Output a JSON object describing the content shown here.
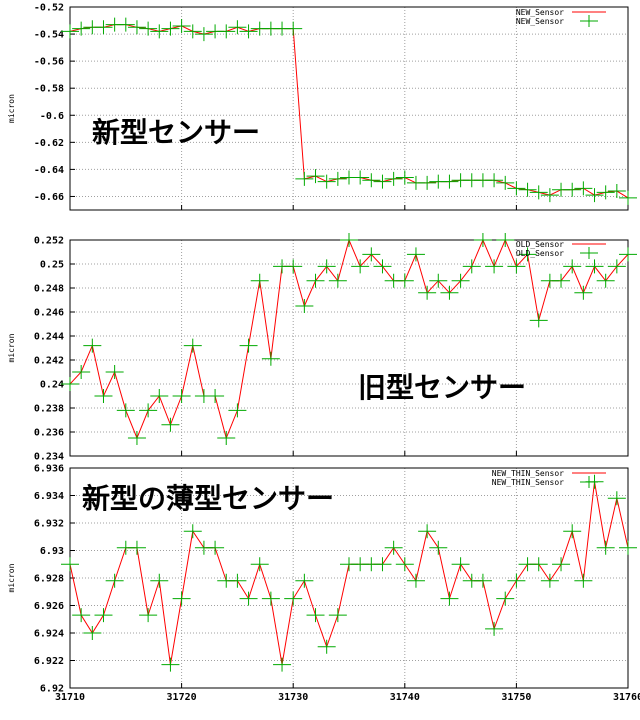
{
  "chart_data": [
    {
      "type": "line",
      "ylabel": "micron",
      "ylim": [
        -0.67,
        -0.52
      ],
      "yticks": [
        "-0.52",
        "-0.54",
        "-0.56",
        "-0.58",
        "-0.6",
        "-0.62",
        "-0.64",
        "-0.66"
      ],
      "xlim": [
        31710,
        31760
      ],
      "grid": true,
      "legend_position": "top-right",
      "overlay_text": "新型センサー",
      "series": [
        {
          "name": "NEW_Sensor",
          "line_color": "#ff0000",
          "marker_color": "#00aa00",
          "x": [
            31710,
            31711,
            31712,
            31713,
            31714,
            31715,
            31716,
            31717,
            31718,
            31719,
            31720,
            31721,
            31722,
            31723,
            31724,
            31725,
            31726,
            31727,
            31728,
            31729,
            31730,
            31731,
            31732,
            31733,
            31734,
            31735,
            31736,
            31737,
            31738,
            31739,
            31740,
            31741,
            31742,
            31743,
            31744,
            31745,
            31746,
            31747,
            31748,
            31749,
            31750,
            31751,
            31752,
            31753,
            31754,
            31755,
            31756,
            31757,
            31758,
            31759,
            31760
          ],
          "y": [
            -0.538,
            -0.536,
            -0.535,
            -0.535,
            -0.533,
            -0.533,
            -0.535,
            -0.536,
            -0.538,
            -0.536,
            -0.534,
            -0.538,
            -0.54,
            -0.538,
            -0.538,
            -0.535,
            -0.538,
            -0.536,
            -0.536,
            -0.536,
            -0.536,
            -0.647,
            -0.645,
            -0.649,
            -0.647,
            -0.646,
            -0.646,
            -0.648,
            -0.649,
            -0.647,
            -0.646,
            -0.65,
            -0.65,
            -0.649,
            -0.649,
            -0.648,
            -0.648,
            -0.648,
            -0.648,
            -0.65,
            -0.654,
            -0.655,
            -0.657,
            -0.659,
            -0.655,
            -0.655,
            -0.654,
            -0.659,
            -0.657,
            -0.656,
            -0.661
          ]
        }
      ]
    },
    {
      "type": "line",
      "ylabel": "micron",
      "ylim": [
        0.234,
        0.252
      ],
      "yticks": [
        "0.252",
        "0.25",
        "0.248",
        "0.246",
        "0.244",
        "0.242",
        "0.24",
        "0.238",
        "0.236",
        "0.234"
      ],
      "xlim": [
        31710,
        31760
      ],
      "grid": true,
      "legend_position": "top-right",
      "overlay_text": "旧型センサー",
      "series": [
        {
          "name": "OLD_Sensor",
          "line_color": "#ff0000",
          "marker_color": "#00aa00",
          "x": [
            31710,
            31711,
            31712,
            31713,
            31714,
            31715,
            31716,
            31717,
            31718,
            31719,
            31720,
            31721,
            31722,
            31723,
            31724,
            31725,
            31726,
            31727,
            31728,
            31729,
            31730,
            31731,
            31732,
            31733,
            31734,
            31735,
            31736,
            31737,
            31738,
            31739,
            31740,
            31741,
            31742,
            31743,
            31744,
            31745,
            31746,
            31747,
            31748,
            31749,
            31750,
            31751,
            31752,
            31753,
            31754,
            31755,
            31756,
            31757,
            31758,
            31759,
            31760
          ],
          "y": [
            0.24,
            0.241,
            0.2432,
            0.239,
            0.241,
            0.2378,
            0.2355,
            0.2378,
            0.239,
            0.2366,
            0.239,
            0.2432,
            0.239,
            0.239,
            0.2355,
            0.2378,
            0.2432,
            0.2486,
            0.2421,
            0.2498,
            0.2498,
            0.2465,
            0.2486,
            0.2498,
            0.2486,
            0.252,
            0.2498,
            0.2508,
            0.2498,
            0.2486,
            0.2486,
            0.2508,
            0.2476,
            0.2486,
            0.2476,
            0.2486,
            0.2498,
            0.252,
            0.2498,
            0.252,
            0.2498,
            0.2508,
            0.2453,
            0.2486,
            0.2486,
            0.2498,
            0.2476,
            0.2498,
            0.2486,
            0.2498,
            0.2508
          ]
        }
      ]
    },
    {
      "type": "line",
      "ylabel": "micron",
      "ylim": [
        6.92,
        6.936
      ],
      "yticks": [
        "6.936",
        "6.934",
        "6.932",
        "6.93",
        "6.928",
        "6.926",
        "6.924",
        "6.922",
        "6.92"
      ],
      "xlim": [
        31710,
        31760
      ],
      "xticks": [
        "31710",
        "31720",
        "31730",
        "31740",
        "31750",
        "31760"
      ],
      "grid": true,
      "legend_position": "top-right",
      "overlay_text": "新型の薄型センサー",
      "series": [
        {
          "name": "NEW_THIN_Sensor",
          "line_color": "#ff0000",
          "marker_color": "#00aa00",
          "x": [
            31710,
            31711,
            31712,
            31713,
            31714,
            31715,
            31716,
            31717,
            31718,
            31719,
            31720,
            31721,
            31722,
            31723,
            31724,
            31725,
            31726,
            31727,
            31728,
            31729,
            31730,
            31731,
            31732,
            31733,
            31734,
            31735,
            31736,
            31737,
            31738,
            31739,
            31740,
            31741,
            31742,
            31743,
            31744,
            31745,
            31746,
            31747,
            31748,
            31749,
            31750,
            31751,
            31752,
            31753,
            31754,
            31755,
            31756,
            31757,
            31758,
            31759,
            31760
          ],
          "y": [
            6.929,
            6.9253,
            6.924,
            6.9253,
            6.9278,
            6.9302,
            6.9302,
            6.9253,
            6.9278,
            6.9217,
            6.9265,
            6.9314,
            6.9302,
            6.9302,
            6.9278,
            6.9278,
            6.9265,
            6.929,
            6.9265,
            6.9217,
            6.9265,
            6.9278,
            6.9253,
            6.923,
            6.9253,
            6.929,
            6.929,
            6.929,
            6.929,
            6.9302,
            6.929,
            6.9278,
            6.9314,
            6.9302,
            6.9265,
            6.929,
            6.9278,
            6.9278,
            6.9243,
            6.9265,
            6.9278,
            6.929,
            6.929,
            6.9278,
            6.929,
            6.9314,
            6.9278,
            6.935,
            6.9302,
            6.9338,
            6.9302
          ]
        }
      ]
    }
  ]
}
